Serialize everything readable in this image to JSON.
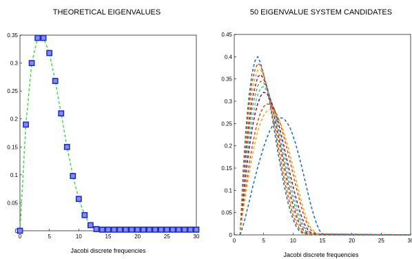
{
  "chart_data": [
    {
      "type": "line",
      "title": "THEORETICAL EIGENVALUES",
      "xlabel": "Jacobi discrete frequencies",
      "ylabel": "",
      "xlim": [
        0,
        30
      ],
      "ylim": [
        0,
        0.35
      ],
      "xticks": [
        "0",
        "5",
        "10",
        "15",
        "20",
        "25",
        "30"
      ],
      "yticks": [
        "0",
        "0.05",
        "0.1",
        "0.15",
        "0.2",
        "0.25",
        "0.3",
        "0.35"
      ],
      "grid": false,
      "series": [
        {
          "style": "dashed line with square markers",
          "line_color": "#33dd33",
          "marker_color": "#1a2fd0",
          "x": [
            0,
            1,
            2,
            3,
            4,
            5,
            6,
            7,
            8,
            9,
            10,
            11,
            12,
            13,
            14,
            15,
            16,
            17,
            18,
            19,
            20,
            21,
            22,
            23,
            24,
            25,
            26,
            27,
            28,
            29,
            30
          ],
          "y": [
            0,
            0.19,
            0.3,
            0.345,
            0.345,
            0.318,
            0.268,
            0.21,
            0.15,
            0.098,
            0.057,
            0.028,
            0.01,
            0.003,
            0.002,
            0.002,
            0.002,
            0.002,
            0.002,
            0.002,
            0.002,
            0.002,
            0.002,
            0.002,
            0.002,
            0.002,
            0.002,
            0.002,
            0.002,
            0.002,
            0.002
          ]
        }
      ]
    },
    {
      "type": "line",
      "title": "50 EIGENVALUE SYSTEM CANDIDATES",
      "xlabel": "Jacobi discrete frequencies",
      "ylabel": "",
      "xlim": [
        0,
        30
      ],
      "ylim": [
        0,
        0.45
      ],
      "xticks": [
        "0",
        "5",
        "10",
        "15",
        "20",
        "25",
        "30"
      ],
      "yticks": [
        "0",
        "0.05",
        "0.1",
        "0.15",
        "0.2",
        "0.25",
        "0.3",
        "0.35",
        "0.4",
        "0.45"
      ],
      "grid": false,
      "series": [
        {
          "color": "#1f77b4",
          "x": [
            1,
            1.5,
            2,
            2.5,
            3,
            3.5,
            4,
            4.5,
            5,
            5.5,
            6,
            6.5,
            7,
            7.5,
            8,
            8.5,
            9,
            9.5,
            10,
            10.5,
            11,
            11.5,
            12,
            12.5,
            13,
            14,
            30
          ],
          "y": [
            0,
            0.14,
            0.24,
            0.31,
            0.36,
            0.39,
            0.4,
            0.385,
            0.36,
            0.33,
            0.3,
            0.26,
            0.22,
            0.18,
            0.145,
            0.11,
            0.08,
            0.055,
            0.035,
            0.02,
            0.01,
            0.005,
            0.002,
            0.001,
            0,
            0,
            0
          ]
        },
        {
          "color": "#d95319",
          "x": [
            1,
            1.5,
            2,
            2.5,
            3,
            3.5,
            4,
            4.5,
            5,
            5.5,
            6,
            6.5,
            7,
            7.5,
            8,
            8.5,
            9,
            9.5,
            10,
            10.5,
            11,
            11.5,
            12,
            12.5,
            13,
            14,
            30
          ],
          "y": [
            0,
            0.13,
            0.22,
            0.29,
            0.34,
            0.37,
            0.385,
            0.38,
            0.36,
            0.335,
            0.305,
            0.27,
            0.235,
            0.195,
            0.16,
            0.125,
            0.095,
            0.068,
            0.045,
            0.028,
            0.015,
            0.007,
            0.003,
            0.001,
            0,
            0,
            0
          ]
        },
        {
          "color": "#edb120",
          "x": [
            1,
            1.5,
            2,
            2.5,
            3,
            3.5,
            4,
            4.5,
            5,
            5.5,
            6,
            6.5,
            7,
            7.5,
            8,
            8.5,
            9,
            9.5,
            10,
            10.5,
            11,
            11.5,
            12,
            12.5,
            13,
            14,
            30
          ],
          "y": [
            0,
            0.12,
            0.2,
            0.27,
            0.32,
            0.35,
            0.37,
            0.37,
            0.355,
            0.335,
            0.31,
            0.28,
            0.245,
            0.21,
            0.175,
            0.14,
            0.108,
            0.08,
            0.055,
            0.036,
            0.02,
            0.01,
            0.004,
            0.002,
            0,
            0,
            0
          ]
        },
        {
          "color": "#7e2f8e",
          "x": [
            1,
            1.5,
            2,
            2.5,
            3,
            3.5,
            4,
            4.5,
            5,
            5.5,
            6,
            6.5,
            7,
            7.5,
            8,
            8.5,
            9,
            9.5,
            10,
            10.5,
            11,
            11.5,
            12,
            12.5,
            13,
            14,
            30
          ],
          "y": [
            0,
            0.11,
            0.19,
            0.25,
            0.3,
            0.33,
            0.355,
            0.36,
            0.35,
            0.335,
            0.312,
            0.285,
            0.255,
            0.222,
            0.188,
            0.155,
            0.122,
            0.093,
            0.067,
            0.045,
            0.028,
            0.015,
            0.007,
            0.003,
            0.001,
            0,
            0
          ]
        },
        {
          "color": "#77ac30",
          "x": [
            1,
            1.5,
            2,
            2.5,
            3,
            3.5,
            4,
            4.5,
            5,
            5.5,
            6,
            6.5,
            7,
            7.5,
            8,
            8.5,
            9,
            9.5,
            10,
            10.5,
            11,
            11.5,
            12,
            12.5,
            13,
            14,
            30
          ],
          "y": [
            0,
            0.1,
            0.17,
            0.23,
            0.28,
            0.31,
            0.335,
            0.345,
            0.342,
            0.33,
            0.312,
            0.29,
            0.263,
            0.233,
            0.2,
            0.168,
            0.137,
            0.107,
            0.08,
            0.057,
            0.037,
            0.022,
            0.011,
            0.005,
            0.002,
            0,
            0
          ]
        },
        {
          "color": "#4dbeee",
          "x": [
            1,
            1.5,
            2,
            2.5,
            3,
            3.5,
            4,
            4.5,
            5,
            5.5,
            6,
            6.5,
            7,
            7.5,
            8,
            8.5,
            9,
            9.5,
            10,
            10.5,
            11,
            11.5,
            12,
            12.5,
            13,
            14,
            30
          ],
          "y": [
            0,
            0.09,
            0.155,
            0.21,
            0.255,
            0.29,
            0.315,
            0.33,
            0.333,
            0.325,
            0.31,
            0.292,
            0.27,
            0.243,
            0.213,
            0.182,
            0.152,
            0.122,
            0.094,
            0.069,
            0.047,
            0.029,
            0.016,
            0.008,
            0.003,
            0,
            0
          ]
        },
        {
          "color": "#a2142f",
          "x": [
            1,
            1.5,
            2,
            2.5,
            3,
            3.5,
            4,
            4.5,
            5,
            5.5,
            6,
            6.5,
            7,
            7.5,
            8,
            8.5,
            9,
            9.5,
            10,
            10.5,
            11,
            11.5,
            12,
            12.5,
            13,
            14,
            30
          ],
          "y": [
            0,
            0.08,
            0.14,
            0.19,
            0.235,
            0.27,
            0.295,
            0.312,
            0.32,
            0.318,
            0.308,
            0.292,
            0.275,
            0.252,
            0.225,
            0.196,
            0.166,
            0.137,
            0.109,
            0.083,
            0.059,
            0.039,
            0.023,
            0.012,
            0.005,
            0.001,
            0
          ]
        },
        {
          "color": "#d95319",
          "x": [
            1,
            1.5,
            2,
            2.5,
            3,
            3.5,
            4,
            4.5,
            5,
            5.5,
            6,
            6.5,
            7,
            7.5,
            8,
            8.5,
            9,
            9.5,
            10,
            10.5,
            11,
            11.5,
            12,
            12.5,
            13,
            14,
            30
          ],
          "y": [
            0,
            0.06,
            0.11,
            0.155,
            0.195,
            0.228,
            0.255,
            0.275,
            0.288,
            0.294,
            0.293,
            0.287,
            0.277,
            0.262,
            0.242,
            0.218,
            0.192,
            0.165,
            0.137,
            0.109,
            0.083,
            0.059,
            0.038,
            0.022,
            0.011,
            0.002,
            0
          ]
        },
        {
          "color": "#edb120",
          "x": [
            1,
            1.5,
            2,
            2.5,
            3,
            3.5,
            4,
            4.5,
            5,
            5.5,
            6,
            6.5,
            7,
            7.5,
            8,
            8.5,
            9,
            9.5,
            10,
            10.5,
            11,
            11.5,
            12,
            12.5,
            13,
            14,
            30
          ],
          "y": [
            0,
            0.05,
            0.095,
            0.135,
            0.172,
            0.205,
            0.232,
            0.253,
            0.268,
            0.277,
            0.281,
            0.279,
            0.272,
            0.262,
            0.247,
            0.228,
            0.205,
            0.18,
            0.153,
            0.125,
            0.098,
            0.072,
            0.049,
            0.03,
            0.016,
            0.003,
            0
          ]
        },
        {
          "color": "#1f77b4",
          "x": [
            1,
            1.5,
            2,
            2.5,
            3,
            3.5,
            4,
            4.5,
            5,
            5.5,
            6,
            6.5,
            7,
            7.5,
            8,
            8.5,
            9,
            9.5,
            10,
            10.5,
            11,
            11.5,
            12,
            12.5,
            13,
            13.5,
            14,
            14.5,
            15,
            30
          ],
          "y": [
            0,
            0.02,
            0.045,
            0.072,
            0.1,
            0.127,
            0.152,
            0.175,
            0.197,
            0.216,
            0.232,
            0.245,
            0.255,
            0.261,
            0.263,
            0.26,
            0.252,
            0.24,
            0.223,
            0.202,
            0.178,
            0.152,
            0.124,
            0.096,
            0.069,
            0.045,
            0.025,
            0.01,
            0.001,
            0
          ]
        }
      ]
    }
  ]
}
